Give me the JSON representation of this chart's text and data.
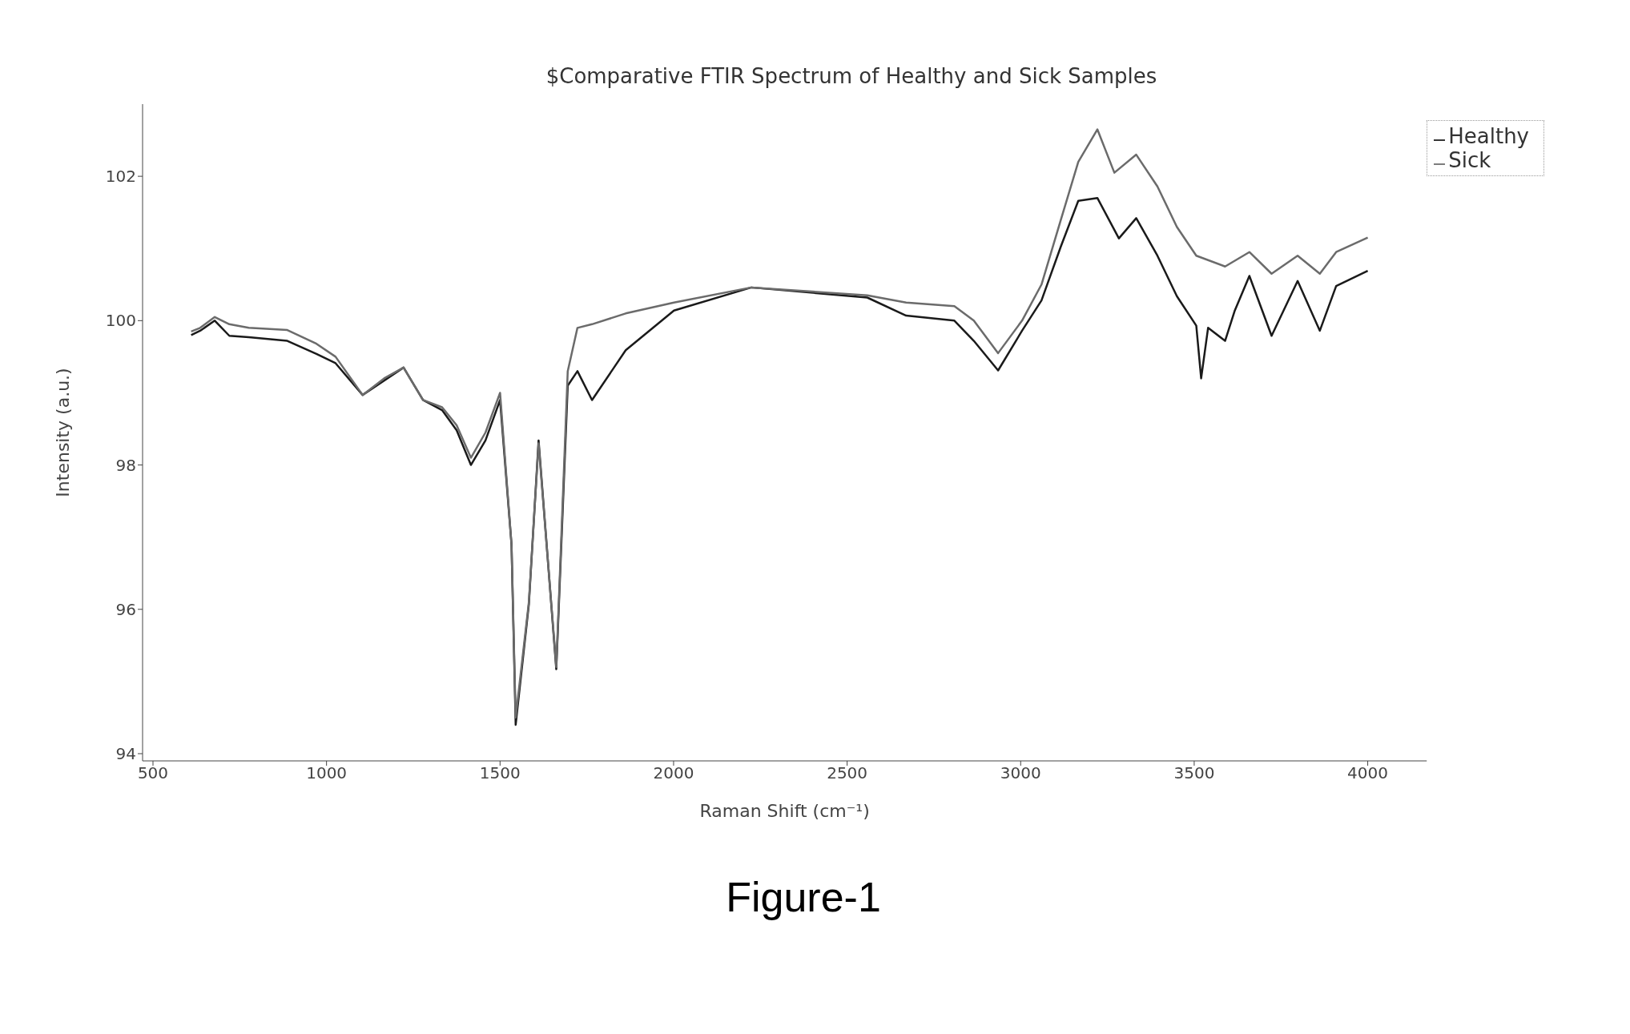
{
  "chart_data": {
    "type": "line",
    "title": "$Comparative FTIR Spectrum of Healthy and Sick Samples",
    "xlabel": "Raman Shift (cm⁻¹)",
    "ylabel": "Intensity (a.u.)",
    "annotations": [
      "Figure-1"
    ],
    "xlim": [
      470,
      4170
    ],
    "ylim": [
      93.9,
      103
    ],
    "xticks": [
      500,
      1000,
      1500,
      2000,
      2500,
      3000,
      3500,
      4000
    ],
    "yticks": [
      94,
      96,
      98,
      100,
      102
    ],
    "grid": false,
    "legend": "top right",
    "marker": "none",
    "line_style": "solid",
    "series": [
      {
        "name": "Healthy",
        "color": "#1a1a1a",
        "x": [
          610,
          636,
          678,
          720,
          776,
          887,
          971,
          1026,
          1104,
          1166,
          1222,
          1278,
          1333,
          1375,
          1416,
          1458,
          1500,
          1533,
          1545,
          1583,
          1611,
          1662,
          1695,
          1723,
          1765,
          1862,
          2001,
          2224,
          2558,
          2670,
          2809,
          2865,
          2935,
          3004,
          3060,
          3116,
          3166,
          3221,
          3283,
          3333,
          3394,
          3450,
          3506,
          3520,
          3540,
          3589,
          3617,
          3659,
          3723,
          3798,
          3862,
          3909,
          4000
        ],
        "values": [
          99.8,
          99.86,
          100.0,
          99.79,
          99.77,
          99.72,
          99.54,
          99.41,
          98.97,
          99.17,
          99.35,
          98.9,
          98.76,
          98.48,
          98.0,
          98.34,
          98.9,
          96.9,
          94.4,
          96.07,
          98.34,
          95.17,
          99.1,
          99.3,
          98.9,
          99.59,
          100.14,
          100.46,
          100.32,
          100.07,
          100.0,
          99.72,
          99.31,
          99.86,
          100.28,
          101.03,
          101.66,
          101.7,
          101.14,
          101.42,
          100.9,
          100.34,
          99.93,
          99.2,
          99.9,
          99.72,
          100.14,
          100.62,
          99.79,
          100.55,
          99.86,
          100.48,
          100.69
        ]
      },
      {
        "name": "Sick",
        "color": "#6b6b6b",
        "x": [
          610,
          636,
          678,
          720,
          776,
          887,
          971,
          1026,
          1104,
          1166,
          1222,
          1278,
          1333,
          1375,
          1416,
          1458,
          1500,
          1533,
          1545,
          1583,
          1611,
          1662,
          1695,
          1723,
          1765,
          1862,
          2001,
          2224,
          2558,
          2670,
          2809,
          2865,
          2935,
          3004,
          3060,
          3116,
          3166,
          3221,
          3270,
          3333,
          3394,
          3450,
          3506,
          3589,
          3659,
          3723,
          3798,
          3862,
          3909,
          4000
        ],
        "values": [
          99.85,
          99.9,
          100.05,
          99.95,
          99.9,
          99.87,
          99.68,
          99.5,
          98.97,
          99.2,
          99.35,
          98.9,
          98.8,
          98.55,
          98.1,
          98.45,
          99.0,
          96.9,
          94.5,
          96.1,
          98.3,
          95.2,
          99.3,
          99.9,
          99.95,
          100.1,
          100.25,
          100.46,
          100.35,
          100.25,
          100.2,
          100.0,
          99.55,
          100.0,
          100.5,
          101.4,
          102.2,
          102.65,
          102.05,
          102.3,
          101.86,
          101.3,
          100.9,
          100.75,
          100.95,
          100.65,
          100.9,
          100.65,
          100.95,
          101.15
        ]
      }
    ]
  }
}
